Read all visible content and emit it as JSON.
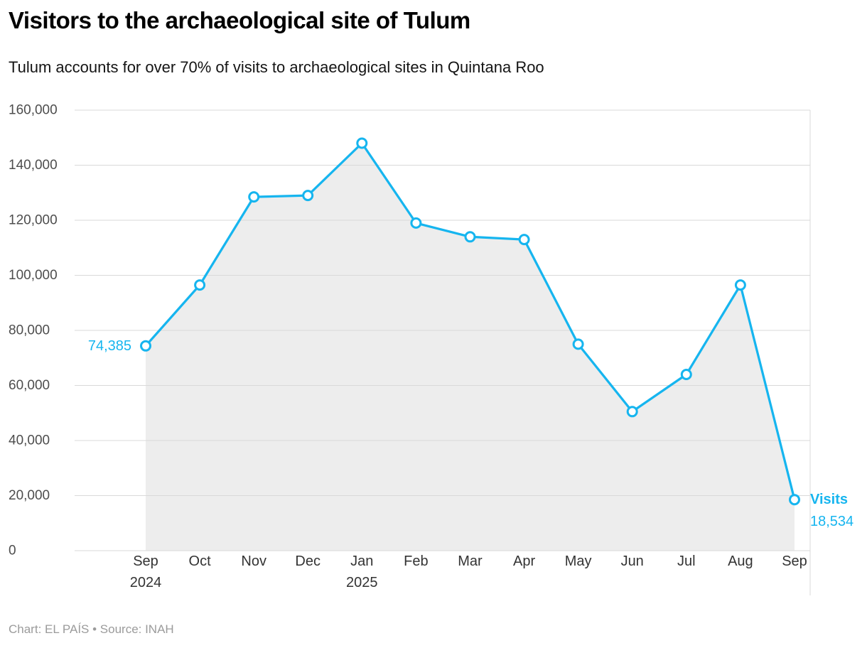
{
  "chart_data": {
    "type": "area",
    "title": "Visitors to the archaeological site of Tulum",
    "subtitle": "Tulum accounts for over 70% of visits to archaeological sites in Quintana Roo",
    "categories": [
      "Sep",
      "Oct",
      "Nov",
      "Dec",
      "Jan",
      "Feb",
      "Mar",
      "Apr",
      "May",
      "Jun",
      "Jul",
      "Aug",
      "Sep"
    ],
    "category_year_labels": {
      "0": "2024",
      "4": "2025"
    },
    "series": [
      {
        "name": "Visits",
        "values": [
          74385,
          96500,
          128500,
          129000,
          148000,
          119000,
          114000,
          113000,
          75000,
          50500,
          64000,
          96500,
          18534
        ]
      }
    ],
    "xlabel": "",
    "ylabel": "",
    "ylim": [
      0,
      160000
    ],
    "ytick_step": 20000,
    "grid": true,
    "legend": "none",
    "annotations": {
      "first_value_label": "74,385",
      "end_series_label": "Visits",
      "end_value_label": "18,534"
    },
    "colors": {
      "line": "#16b5ef",
      "area": "#ededed",
      "grid": "#d9d9d9",
      "axis_text": "#4d4d4d",
      "x_axis_text": "#333333",
      "label": "#16b5ef"
    }
  },
  "footer": {
    "attribution": "Chart: EL PAÍS • Source: INAH"
  }
}
